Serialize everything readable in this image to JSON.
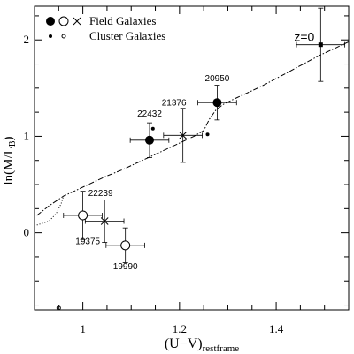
{
  "chart_data": {
    "type": "scatter",
    "xlabel": "(U−V)",
    "xlabel_sub": "restframe",
    "ylabel": "ln(M/L",
    "ylabel_sub": "B",
    "ylabel_close": ")",
    "xlim": [
      0.9,
      1.55
    ],
    "ylim": [
      -0.8,
      2.35
    ],
    "xticks": [
      1.0,
      1.2,
      1.4
    ],
    "xtick_labels": [
      "1",
      "1.2",
      "1.4"
    ],
    "xminor_step": 0.05,
    "yticks": [
      0,
      1,
      2
    ],
    "ytick_labels": [
      "0",
      "1",
      "2"
    ],
    "yminor_step": 0.25,
    "grid": false,
    "legend": {
      "placement": "top-left",
      "entries": [
        {
          "symbols": [
            "filled-large",
            "open-large",
            "cross"
          ],
          "label": "Field Galaxies"
        },
        {
          "symbols": [
            "filled-small",
            "open-small"
          ],
          "label": "Cluster Galaxies"
        }
      ]
    },
    "model_track": {
      "style": "dash-dot",
      "points": [
        [
          0.905,
          0.18
        ],
        [
          0.93,
          0.28
        ],
        [
          0.96,
          0.38
        ],
        [
          0.99,
          0.45
        ],
        [
          1.02,
          0.52
        ],
        [
          1.05,
          0.59
        ],
        [
          1.08,
          0.65
        ],
        [
          1.11,
          0.72
        ],
        [
          1.14,
          0.79
        ],
        [
          1.17,
          0.86
        ],
        [
          1.2,
          0.93
        ],
        [
          1.23,
          1.0
        ],
        [
          1.25,
          1.06
        ],
        [
          1.262,
          1.18
        ],
        [
          1.275,
          1.27
        ],
        [
          1.29,
          1.33
        ],
        [
          1.31,
          1.38
        ],
        [
          1.34,
          1.45
        ],
        [
          1.37,
          1.52
        ],
        [
          1.4,
          1.6
        ],
        [
          1.43,
          1.68
        ],
        [
          1.46,
          1.76
        ],
        [
          1.49,
          1.84
        ],
        [
          1.52,
          1.91
        ],
        [
          1.55,
          1.98
        ]
      ]
    },
    "model_track_extension": {
      "style": "dotted",
      "points": [
        [
          0.905,
          0.08
        ],
        [
          0.93,
          0.12
        ],
        [
          0.945,
          0.2
        ],
        [
          0.955,
          0.3
        ],
        [
          0.96,
          0.38
        ]
      ]
    },
    "field_galaxies": [
      {
        "label": "20950",
        "marker": "filled-large",
        "x": 1.278,
        "y": 1.35,
        "xerr": 0.04,
        "yerr": 0.18
      },
      {
        "label": "22432",
        "marker": "filled-large",
        "x": 1.138,
        "y": 0.96,
        "xerr": 0.04,
        "yerr": 0.18
      },
      {
        "label": "21376",
        "marker": "cross",
        "x": 1.207,
        "y": 1.01,
        "xerr": 0.04,
        "yerr": 0.28
      },
      {
        "label": "22239",
        "marker": "open-large",
        "x": 1.0,
        "y": 0.18,
        "xerr": 0.04,
        "yerr": 0.25
      },
      {
        "label": "19375",
        "marker": "cross",
        "x": 1.045,
        "y": 0.12,
        "xerr": 0.04,
        "yerr": 0.22
      },
      {
        "label": "19990",
        "marker": "open-large",
        "x": 1.088,
        "y": -0.13,
        "xerr": 0.04,
        "yerr": 0.18
      }
    ],
    "cluster_galaxies": [
      {
        "marker": "filled-small",
        "x": 1.145,
        "y": 1.08
      },
      {
        "marker": "filled-small",
        "x": 1.258,
        "y": 1.02
      },
      {
        "marker": "open-small",
        "x": 0.95,
        "y": -0.78
      }
    ],
    "z0_point": {
      "label": "z=0",
      "x": 1.492,
      "y": 1.95,
      "xerr": 0.05,
      "yerr": 0.38
    }
  }
}
